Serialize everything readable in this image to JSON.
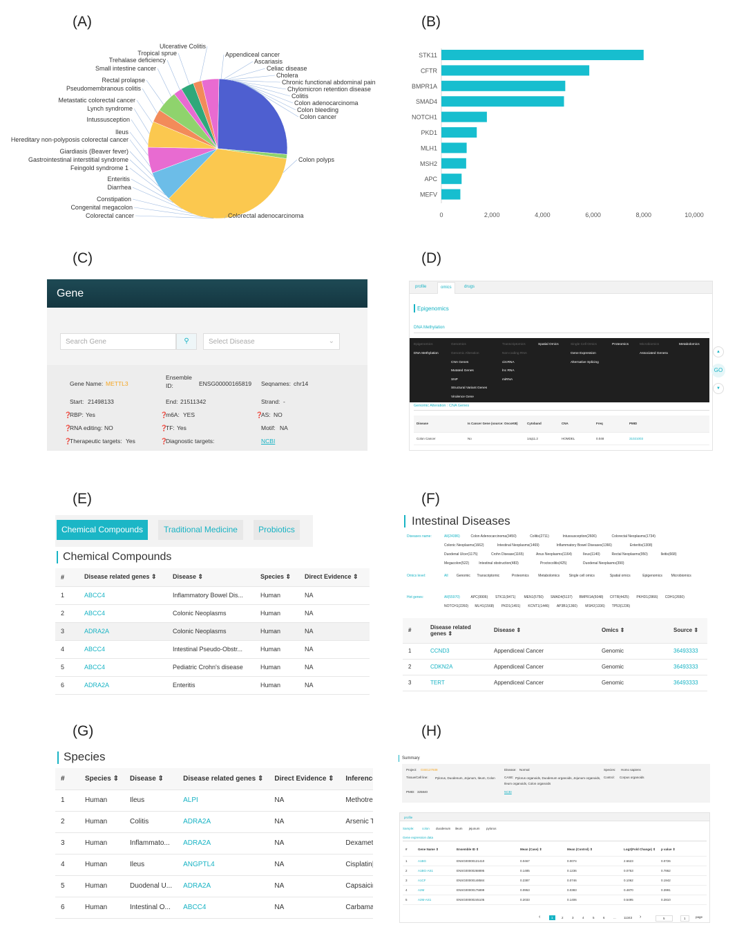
{
  "panel_labels": {
    "A": "(A)",
    "B": "(B)",
    "C": "(C)",
    "D": "(D)",
    "E": "(E)",
    "F": "(F)",
    "G": "(G)",
    "H": "(H)"
  },
  "chart_data": [
    {
      "type": "pie",
      "panel": "A",
      "slices": [
        {
          "label": "Colon cancer",
          "value": 26,
          "color": "#4e5fd0"
        },
        {
          "label": "Colon polyps",
          "value": 1,
          "color": "#8fd36d"
        },
        {
          "label": "Colorectal adenocarcinoma",
          "value": 35,
          "color": "#fbc84f"
        },
        {
          "label": "Colorectal cancer",
          "value": 7,
          "color": "#6cbde8"
        },
        {
          "label": "Congenital megacolon",
          "value": 6,
          "color": "#e86bd1"
        },
        {
          "label": "Constipation",
          "value": 6,
          "color": "#fbc84f"
        },
        {
          "label": "Ileus",
          "value": 3,
          "color": "#f28b5a"
        },
        {
          "label": "Small intestine cancer",
          "value": 5,
          "color": "#8fd36d"
        },
        {
          "label": "Trehalase deficiency",
          "value": 2,
          "color": "#e86bd1"
        },
        {
          "label": "Ulcerative Colitis",
          "value": 3,
          "color": "#2fa87a"
        },
        {
          "label": "Appendiceal cancer",
          "value": 2,
          "color": "#f28b5a"
        },
        {
          "label": "Celiac disease",
          "value": 4,
          "color": "#e86bd1"
        }
      ],
      "labels_left": [
        "Ulcerative Colitis",
        "Tropical sprue",
        "Trehalase deficiency",
        "Small intestine cancer",
        "Rectal prolapse",
        "Pseudomembranous colitis",
        "Metastatic colorectal cancer",
        "Lynch syndrome",
        "Intussusception",
        "Ileus",
        "Hereditary non-polyposis colorectal cancer",
        "Giardiasis (Beaver fever)",
        "Gastrointestinal interstitial syndrome",
        "Feingold syndrome 1",
        "Enteritis",
        "Diarrhea",
        "Constipation",
        "Congenital megacolon",
        "Colorectal cancer"
      ],
      "labels_right": [
        "Appendiceal cancer",
        "Ascariasis",
        "Celiac disease",
        "Cholera",
        "Chronic functional abdominal pain",
        "Chylomicron retention disease",
        "Colitis",
        "Colon adenocarcinoma",
        "Colon bleeding",
        "Colon cancer"
      ],
      "label_polyps": "Colon polyps",
      "label_bottom": "Colorectal adenocarcinoma"
    },
    {
      "type": "bar",
      "panel": "B",
      "orientation": "horizontal",
      "categories": [
        "STK11",
        "CFTR",
        "BMPR1A",
        "SMAD4",
        "NOTCH1",
        "PKD1",
        "MLH1",
        "MSH2",
        "APC",
        "MEFV"
      ],
      "values": [
        8000,
        5850,
        4900,
        4850,
        1800,
        1400,
        1000,
        980,
        800,
        750
      ],
      "xlim": [
        0,
        10000
      ],
      "xticks": [
        "0",
        "2,000",
        "4,000",
        "6,000",
        "8,000",
        "10,000"
      ],
      "color": "#17becf"
    }
  ],
  "gene_panel": {
    "title": "Gene",
    "search_placeholder": "Search Gene",
    "select_placeholder": "Select Disease",
    "gene_name_label": "Gene Name:",
    "gene_name_value": "METTL3",
    "ensemble_label": "Ensemble ID:",
    "ensemble_value": "ENSG00000165819",
    "seqnames_label": "Seqnames:",
    "seqnames_value": "chr14",
    "start_label": "Start:",
    "start_value": "21498133",
    "end_label": "End:",
    "end_value": "21511342",
    "strand_label": "Strand:",
    "strand_value": "-",
    "rbp_label": "RBP:",
    "rbp_value": "Yes",
    "m6a_label": "m6A:",
    "m6a_value": "YES",
    "as_label": "AS:",
    "as_value": "NO",
    "rna_label": "RNA editing:",
    "rna_value": "NO",
    "tf_label": "TF:",
    "tf_value": "Yes",
    "motif_label": "Motif:",
    "motif_value": "NA",
    "ther_label": "Therapeutic targets:",
    "ther_value": "Yes",
    "diag_label": "Diagnostic targets:",
    "ncbi": "NCBI"
  },
  "omics_panel": {
    "tabs": [
      "profile",
      "omics",
      "drugs"
    ],
    "section": "Epigenomics",
    "subsection": "DNA Methylation",
    "menu_top": [
      "Epigenomics",
      "Genomics",
      "Transcriptomics",
      "Spatial Omics",
      "Single Cell Omics",
      "Proteomics",
      "Microbiomics",
      "Metabolomics"
    ],
    "menu_col1": [
      "DNA Methylation"
    ],
    "menu_col2": [
      "Genomic Alteration",
      "CNA Genes",
      "Mutated Genes",
      "SNP",
      "Structural Variant Genes",
      "Virulence Gene"
    ],
    "menu_col3": [
      "Non-coding RNA",
      "circRNA",
      "lnc RNA",
      "miRNA"
    ],
    "menu_col4": [
      "Gene Expression",
      "Alternative Splicing"
    ],
    "menu_col5": [
      "Associated Genera"
    ],
    "breadcrumb": "Genomic Alteration : CNA Genes",
    "go": "GO",
    "headers": [
      "Disease",
      "Is Cancer Gene (source: OncoKB)",
      "Cytoband",
      "CNA",
      "Freq",
      "PMID"
    ],
    "row": [
      "Colon Cancer",
      "No",
      "14q11.2",
      "HOMDEL",
      "0.048",
      "31021003"
    ]
  },
  "compounds_panel": {
    "tabs": [
      "Chemical Compounds",
      "Traditional Medicine",
      "Probiotics"
    ],
    "title": "Chemical Compounds",
    "headers": [
      "#",
      "Disease related genes ⇕",
      "Disease ⇕",
      "Species ⇕",
      "Direct Evidence ⇕"
    ],
    "rows": [
      [
        "1",
        "ABCC4",
        "Inflammatory Bowel Dis...",
        "Human",
        "NA"
      ],
      [
        "2",
        "ABCC4",
        "Colonic Neoplasms",
        "Human",
        "NA"
      ],
      [
        "3",
        "ADRA2A",
        "Colonic Neoplasms",
        "Human",
        "NA"
      ],
      [
        "4",
        "ABCC4",
        "Intestinal Pseudo-Obstr...",
        "Human",
        "NA"
      ],
      [
        "5",
        "ABCC4",
        "Pediatric Crohn's disease",
        "Human",
        "NA"
      ],
      [
        "6",
        "ADRA2A",
        "Enteritis",
        "Human",
        "NA"
      ]
    ]
  },
  "intestinal_panel": {
    "title": "Intestinal Diseases",
    "diseases_label": "Diseases name:",
    "diseases": [
      "All(24386)",
      "Colon Adenocarcinoma(3450)",
      "Colitis(2711)",
      "Intussusception(2606)",
      "Colorectal Neoplasms(1734)",
      "Colonic Neoplasms(1662)",
      "Intestinal Neoplasms(1469)",
      "Inflammatory Bowel Diseases(1366)",
      "Enteritis(1308)",
      "Duodenal Ulcer(1175)",
      "Crohn Disease(1165)",
      "Anus Neoplasms(1164)",
      "Ileus(1140)",
      "Rectal Neoplasms(950)",
      "Ileitis(668)",
      "Megacolon(522)",
      "Intestinal obstruction(483)",
      "Proctocolitis(425)",
      "Duodenal Neoplasms(390)"
    ],
    "omics_label": "Omics level:",
    "omics": [
      "All",
      "Genomic",
      "Transcriptomic",
      "Proteomics",
      "Metabolomics",
      "Single cell omics",
      "Spatial omics",
      "Epigenomics",
      "Microbiomics"
    ],
    "hot_label": "Hot genes:",
    "hot": [
      "All(55970)",
      "APC(9906)",
      "STK11(9471)",
      "MEN1(5750)",
      "SMAD4(5137)",
      "BMPR1A(5048)",
      "CFTR(4425)",
      "PKHD1(2866)",
      "CDH1(2650)",
      "NOTCH1(2260)",
      "MLH1(1568)",
      "PKD1(1491)",
      "KCNT1(1446)",
      "AP3B1(1360)",
      "MSH2(1336)",
      "TP53(1236)"
    ],
    "headers": [
      "#",
      "Disease related genes ⇕",
      "Disease ⇕",
      "Omics ⇕",
      "Source ⇕"
    ],
    "rows": [
      [
        "1",
        "CCND3",
        "Appendiceal Cancer",
        "Genomic",
        "36493333"
      ],
      [
        "2",
        "CDKN2A",
        "Appendiceal Cancer",
        "Genomic",
        "36493333"
      ],
      [
        "3",
        "TERT",
        "Appendiceal Cancer",
        "Genomic",
        "36493333"
      ]
    ]
  },
  "species_panel": {
    "title": "Species",
    "headers": [
      "#",
      "Species ⇕",
      "Disease ⇕",
      "Disease related genes ⇕",
      "Direct Evidence ⇕",
      "Inference"
    ],
    "rows": [
      [
        "1",
        "Human",
        "Ileus",
        "ALPI",
        "NA",
        "Methotrex"
      ],
      [
        "2",
        "Human",
        "Colitis",
        "ADRA2A",
        "NA",
        "Arsenic Tri"
      ],
      [
        "3",
        "Human",
        "Inflammato...",
        "ADRA2A",
        "NA",
        "Dexameth"
      ],
      [
        "4",
        "Human",
        "Ileus",
        "ANGPTL4",
        "NA",
        "Cisplatin|P"
      ],
      [
        "5",
        "Human",
        "Duodenal U...",
        "ADRA2A",
        "NA",
        "Capsaicin|"
      ],
      [
        "6",
        "Human",
        "Intestinal O...",
        "ABCC4",
        "NA",
        "Carbamaz"
      ]
    ]
  },
  "summary_panel": {
    "title": "Summary",
    "project_label": "Project:",
    "project_value": "GSE127938",
    "disease_label": "Disease:",
    "disease_value": "Normal",
    "species_label": "Species:",
    "species_value": "Homo sapiens",
    "tissue_label": "Tissue/Cell line:",
    "tissue_value": "Pylorus, Duodenum, Jejunum, Ileum, Colon",
    "case_label": "CASE:",
    "case_value": "Pylorus organoids, Duodenum organoids, Jejunum organoids, Ileum organoids, Colon organoids",
    "control_label": "Control:",
    "control_value": "Corpus organoids",
    "pmid_label": "PMID:",
    "pmid_value": "325840",
    "ncbi": "NCBI",
    "profile_tab": "profile",
    "sample_label": "Sample:",
    "samples": [
      "colon",
      "duodenum",
      "ileum",
      "jejunum",
      "pylorus"
    ],
    "gene_expr": "Gene expression data",
    "headers": [
      "#",
      "Gene Name ⇕",
      "Ensemble ID ⇕",
      "Mean (Case) ⇕",
      "Mean (Control) ⇕",
      "Log2(Fold Change) ⇕",
      "p value ⇕"
    ],
    "rows": [
      [
        "1",
        "A1BG",
        "ENSG00000121410",
        "0.0467",
        "0.0074",
        "2.6623",
        "0.0726"
      ],
      [
        "2",
        "A1BG-AS1",
        "ENSG00000268895",
        "0.1485",
        "0.1236",
        "0.0753",
        "0.7862"
      ],
      [
        "3",
        "A1CF",
        "ENSG00000148584",
        "0.2387",
        "0.0746",
        "0.1062",
        "0.1942"
      ],
      [
        "4",
        "A2M",
        "ENSG00000175899",
        "0.0953",
        "0.0383",
        "0.4870",
        "0.3991"
      ],
      [
        "5",
        "A2M-AS1",
        "ENSG00000245105",
        "0.2033",
        "0.1406",
        "0.5495",
        "0.2810"
      ]
    ],
    "pages": [
      "1",
      "2",
      "3",
      "4",
      "5",
      "6",
      "...",
      "11343"
    ],
    "page_size": "5",
    "goto": "1",
    "page_word": "page"
  }
}
